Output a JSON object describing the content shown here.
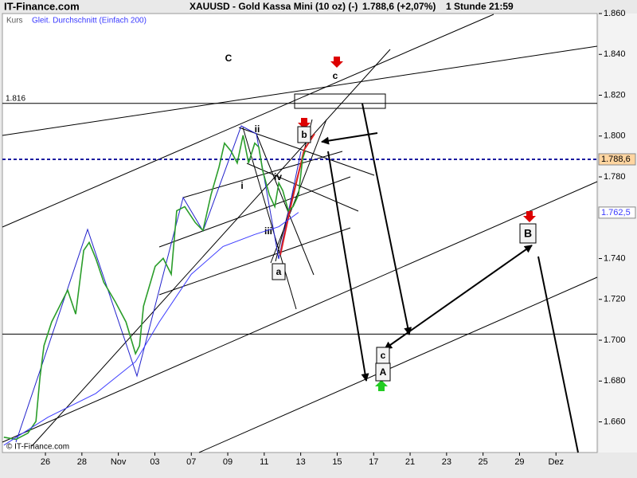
{
  "chart_data": {
    "type": "line",
    "site": "IT-Finance.com",
    "title": "XAUUSD - Gold Kassa Mini (10 oz) (-)",
    "quote": "1.788,6 (+2,07%)",
    "interval": "1 Stunde",
    "time": "21:59",
    "copyright": "© IT-Finance.com",
    "xlim": [
      -1.18,
      15.13
    ],
    "xticks": [
      {
        "value": 0,
        "label": "26"
      },
      {
        "value": 1,
        "label": "28"
      },
      {
        "value": 2,
        "label": "Nov"
      },
      {
        "value": 3,
        "label": "03"
      },
      {
        "value": 4,
        "label": "07"
      },
      {
        "value": 5,
        "label": "09"
      },
      {
        "value": 6,
        "label": "11"
      },
      {
        "value": 7,
        "label": "13"
      },
      {
        "value": 8,
        "label": "15"
      },
      {
        "value": 9,
        "label": "17"
      },
      {
        "value": 10,
        "label": "21"
      },
      {
        "value": 11,
        "label": "23"
      },
      {
        "value": 12,
        "label": "25"
      },
      {
        "value": 13,
        "label": "29"
      },
      {
        "value": 14,
        "label": "Dez"
      }
    ],
    "ylim": [
      1.645,
      1.86
    ],
    "yticks": [
      {
        "value": 1.66,
        "label": "1.660"
      },
      {
        "value": 1.68,
        "label": "1.680"
      },
      {
        "value": 1.7,
        "label": "1.700"
      },
      {
        "value": 1.72,
        "label": "1.720"
      },
      {
        "value": 1.74,
        "label": "1.740"
      },
      {
        "value": 1.78,
        "label": "1.780"
      },
      {
        "value": 1.8,
        "label": "1.800"
      },
      {
        "value": 1.82,
        "label": "1.820"
      },
      {
        "value": 1.84,
        "label": "1.840"
      },
      {
        "value": 1.86,
        "label": "1.860"
      }
    ],
    "series": [
      {
        "name": "Kurs",
        "color": "#2a9d2a",
        "x": [
          -1.14,
          -0.81,
          -0.48,
          -0.26,
          -0.15,
          -0.04,
          0.17,
          0.39,
          0.61,
          0.83,
          1.05,
          1.2,
          1.38,
          1.6,
          1.92,
          2.21,
          2.47,
          2.58,
          2.69,
          3.01,
          3.23,
          3.45,
          3.6,
          3.82,
          4.11,
          4.32,
          4.54,
          4.76,
          4.91,
          5.09,
          5.26,
          5.42,
          5.57,
          5.74,
          5.85,
          5.96,
          6.14,
          6.29,
          6.4,
          6.51,
          6.66,
          6.79,
          6.94,
          7.05,
          7.12
        ],
        "values": [
          1.6525,
          1.6514,
          1.6545,
          1.6603,
          1.6817,
          1.6973,
          1.7089,
          1.7167,
          1.7245,
          1.7128,
          1.744,
          1.7479,
          1.7401,
          1.7284,
          1.7187,
          1.7089,
          1.6934,
          1.6973,
          1.7167,
          1.7362,
          1.7401,
          1.7323,
          1.7634,
          1.7654,
          1.7576,
          1.7537,
          1.7712,
          1.7848,
          1.7965,
          1.7926,
          1.7868,
          1.8004,
          1.7868,
          1.7965,
          1.7946,
          1.7829,
          1.7712,
          1.7654,
          1.777,
          1.7732,
          1.7634,
          1.7654,
          1.7712,
          1.7887,
          1.7926
        ]
      },
      {
        "name": "Gleit. Durchschnitt (Einfach 200)",
        "color": "#3a3aff",
        "x": [
          -1.14,
          0.07,
          1.38,
          2.47,
          3.12,
          4.0,
          4.87,
          5.74,
          6.4,
          6.94
        ],
        "values": [
          1.6486,
          1.6623,
          1.6739,
          1.6895,
          1.7089,
          1.7323,
          1.7459,
          1.7518,
          1.7556,
          1.7626
        ]
      }
    ],
    "reference_lines": [
      {
        "value": 1.816,
        "label": "1.816"
      },
      {
        "value": 1.703
      }
    ],
    "last_price": {
      "value": 1.7886,
      "label": "1.788,6"
    },
    "ma_last": {
      "value": 1.7625,
      "label": "1.762,5"
    },
    "annotations": [
      "C",
      "c",
      "b",
      "ii",
      "i",
      "iv",
      "iii",
      "a",
      "c",
      "A",
      "B"
    ]
  }
}
